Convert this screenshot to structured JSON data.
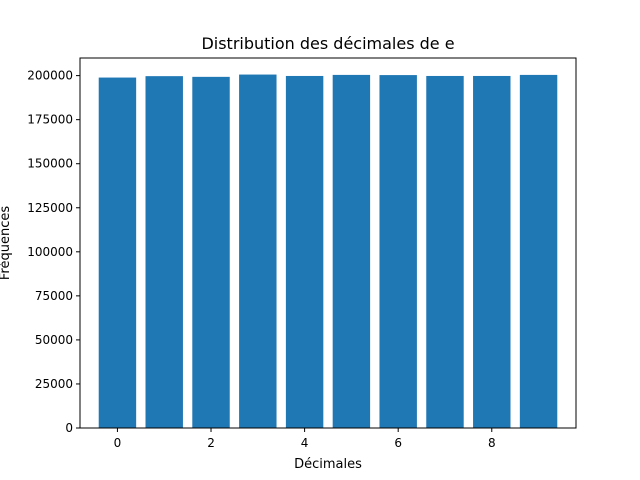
{
  "chart_data": {
    "type": "bar",
    "title": "Distribution des décimales de e",
    "xlabel": "Décimales",
    "ylabel": "Fréquences",
    "categories": [
      0,
      1,
      2,
      3,
      4,
      5,
      6,
      7,
      8,
      9
    ],
    "values": [
      198900,
      199700,
      199300,
      200600,
      199800,
      200400,
      200300,
      199800,
      199800,
      200400
    ],
    "xlim": [
      -0.8,
      9.8
    ],
    "ylim": [
      0,
      210000
    ],
    "xticks": [
      0,
      2,
      4,
      6,
      8
    ],
    "xtick_labels": [
      "0",
      "2",
      "4",
      "6",
      "8"
    ],
    "yticks": [
      0,
      25000,
      50000,
      75000,
      100000,
      125000,
      150000,
      175000,
      200000
    ],
    "ytick_labels": [
      "0",
      "25000",
      "50000",
      "75000",
      "100000",
      "125000",
      "150000",
      "175000",
      "200000"
    ],
    "bar_width": 0.8,
    "bar_color": "#1f77b4",
    "grid": false,
    "legend": "none"
  }
}
